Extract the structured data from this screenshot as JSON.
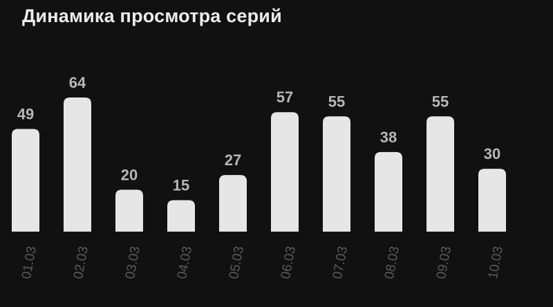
{
  "chart_data": {
    "type": "bar",
    "title": "Динамика просмотра серий",
    "categories": [
      "01.03",
      "02.03",
      "03.03",
      "04.03",
      "05.03",
      "06.03",
      "07.03",
      "08.03",
      "09.03",
      "10.03"
    ],
    "values": [
      49,
      64,
      20,
      15,
      27,
      57,
      55,
      38,
      55,
      30
    ],
    "xlabel": "",
    "ylabel": "",
    "ylim": [
      0,
      64
    ],
    "grid": false,
    "bar_color": "#e6e6e6",
    "background_color": "#111111"
  }
}
